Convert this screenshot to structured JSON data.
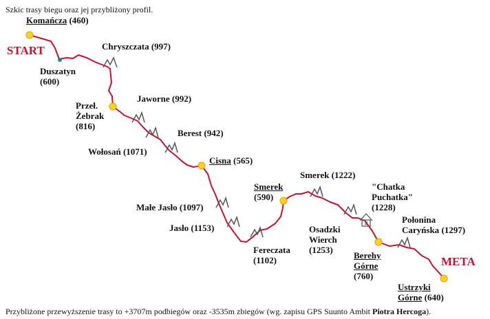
{
  "captions": {
    "top": "Szkic trasy biegu oraz jej przybliżony profil.",
    "bottom_prefix": "Przybliżone przewyższenie trasy to +3707m podbiegów oraz -3535m zbiegów (wg. zapisu GPS Suunto Ambit ",
    "bottom_author": "Piotra Hercoga",
    "bottom_suffix": ")."
  },
  "markers": {
    "start": "START",
    "finish": "META"
  },
  "places": [
    {
      "id": "komancza",
      "name": "Komańcza",
      "elev": "(460)",
      "underline": true
    },
    {
      "id": "duszatyn",
      "name": "Duszatyn",
      "elev": "(600)"
    },
    {
      "id": "chryszczata",
      "name": "Chryszczata",
      "elev": "(997)"
    },
    {
      "id": "przel-zebrak",
      "name": "Przeł.",
      "name2": "Żebrak",
      "elev": "(816)"
    },
    {
      "id": "jaworne",
      "name": "Jaworne",
      "elev": "(992)"
    },
    {
      "id": "berest",
      "name": "Berest",
      "elev": "(942)"
    },
    {
      "id": "wolosan",
      "name": "Wołosań",
      "elev": "(1071)"
    },
    {
      "id": "cisna",
      "name": "Cisna",
      "elev": "(565)",
      "underline": true
    },
    {
      "id": "smerek-village",
      "name": "Smerek",
      "elev": "(590)",
      "underline": true
    },
    {
      "id": "smerek-peak",
      "name": "Smerek",
      "elev": "(1222)"
    },
    {
      "id": "chatka",
      "name": "\"Chatka",
      "name2": "Puchatka\"",
      "elev": "(1228)"
    },
    {
      "id": "male-jaslo",
      "name": "Małe Jasło",
      "elev": "(1097)"
    },
    {
      "id": "jaslo",
      "name": "Jasło",
      "elev": "(1153)"
    },
    {
      "id": "fereczata",
      "name": "Fereczata",
      "elev": "(1102)"
    },
    {
      "id": "osadzki",
      "name": "Osadzki",
      "name2": "Wierch",
      "elev": "(1253)"
    },
    {
      "id": "polonina",
      "name": "Połonina",
      "name2": "Caryńska",
      "elev": "(1297)"
    },
    {
      "id": "berehy",
      "name": "Berehy",
      "name2": "Górne",
      "elev": "(760)",
      "underline": true
    },
    {
      "id": "ustrzyki",
      "name": "Ustrzyki",
      "name2": "Górne",
      "elev": "(640)",
      "underline": true
    }
  ],
  "colors": {
    "route": "#c8102e",
    "marker_fill": "#ffd21f",
    "marker_stroke": "#e0a000",
    "peak_icon": "#555555",
    "start_dot": "#1a8a8a",
    "label": "#c8102e"
  },
  "icons": {
    "peak": "mountain-peak-icon",
    "hut": "hut-icon",
    "town": "town-dot-icon"
  }
}
